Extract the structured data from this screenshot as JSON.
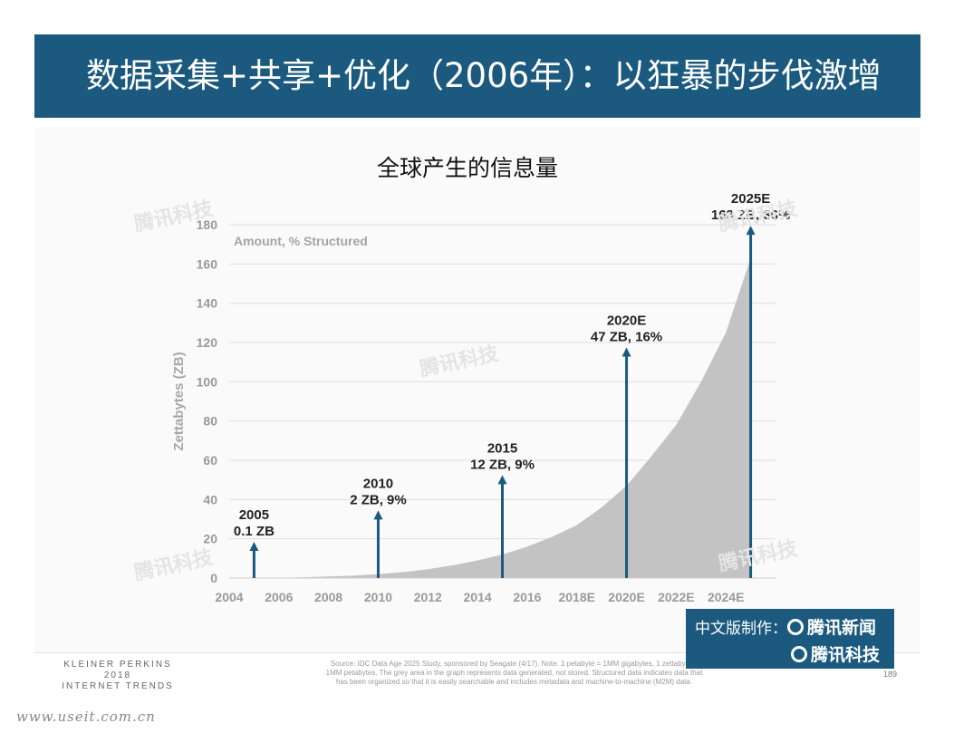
{
  "header": {
    "title": "数据采集+共享+优化（2006年）：以狂暴的步伐激增"
  },
  "chart_data": {
    "type": "area",
    "title": "全球产生的信息量",
    "subtitle": "Amount, % Structured",
    "ylabel": "Zettabytes (ZB)",
    "ylim": [
      0,
      180
    ],
    "yticks": [
      0,
      20,
      40,
      60,
      80,
      100,
      120,
      140,
      160,
      180
    ],
    "xlim": [
      2004,
      2026
    ],
    "xticks": [
      {
        "x": 2004,
        "label": "2004"
      },
      {
        "x": 2006,
        "label": "2006"
      },
      {
        "x": 2008,
        "label": "2008"
      },
      {
        "x": 2010,
        "label": "2010"
      },
      {
        "x": 2012,
        "label": "2012"
      },
      {
        "x": 2014,
        "label": "2014"
      },
      {
        "x": 2016,
        "label": "2016"
      },
      {
        "x": 2018,
        "label": "2018E"
      },
      {
        "x": 2020,
        "label": "2020E"
      },
      {
        "x": 2022,
        "label": "2022E"
      },
      {
        "x": 2024,
        "label": "2024E"
      }
    ],
    "grid": true,
    "series": [
      {
        "x": [
          2005,
          2006,
          2007,
          2008,
          2009,
          2010,
          2011,
          2012,
          2013,
          2014,
          2015,
          2016,
          2017,
          2018,
          2019,
          2020,
          2021,
          2022,
          2023,
          2024,
          2025
        ],
        "values": [
          0.1,
          0.2,
          0.4,
          0.8,
          1.2,
          2,
          3,
          4.5,
          6.5,
          9,
          12,
          16,
          21,
          27,
          36,
          47,
          62,
          78,
          100,
          125,
          163
        ]
      }
    ],
    "annotations": [
      {
        "x": 2005,
        "arrow_top": 18,
        "year": "2005",
        "value": "0.1 ZB"
      },
      {
        "x": 2010,
        "arrow_top": 34,
        "year": "2010",
        "value": "2 ZB, 9%"
      },
      {
        "x": 2015,
        "arrow_top": 52,
        "year": "2015",
        "value": "12 ZB, 9%"
      },
      {
        "x": 2020,
        "arrow_top": 117,
        "year": "2020E",
        "value": "47 ZB, 16%"
      },
      {
        "x": 2025,
        "arrow_top": 179,
        "year": "2025E",
        "value": "163 ZB, 36%"
      }
    ],
    "area_color": "#c3c3c3",
    "arrow_color": "#1b5a7e"
  },
  "footer": {
    "org_line1": "KLEINER PERKINS",
    "org_line2": "2018",
    "org_line3": "INTERNET TRENDS",
    "source_line1": "Source: IDC Data Age 2025 Study, sponsored by Seagate (4/17). Note: 1 petabyte = 1MM gigabytes, 1 zettabyte =",
    "source_line2": "1MM petabytes. The grey area in the graph represents data generated, not stored. Structured data indicates data that",
    "source_line3": "has been organized so that it is easily searchable and includes metadata and machine-to-machine (M2M) data.",
    "page_number": "189"
  },
  "badge": {
    "line1_prefix": "中文版制作：",
    "line1_brand": "腾讯新闻",
    "line2_brand": "腾讯科技"
  },
  "watermark": {
    "text": "腾讯科技",
    "url": "www.useit.com.cn"
  }
}
